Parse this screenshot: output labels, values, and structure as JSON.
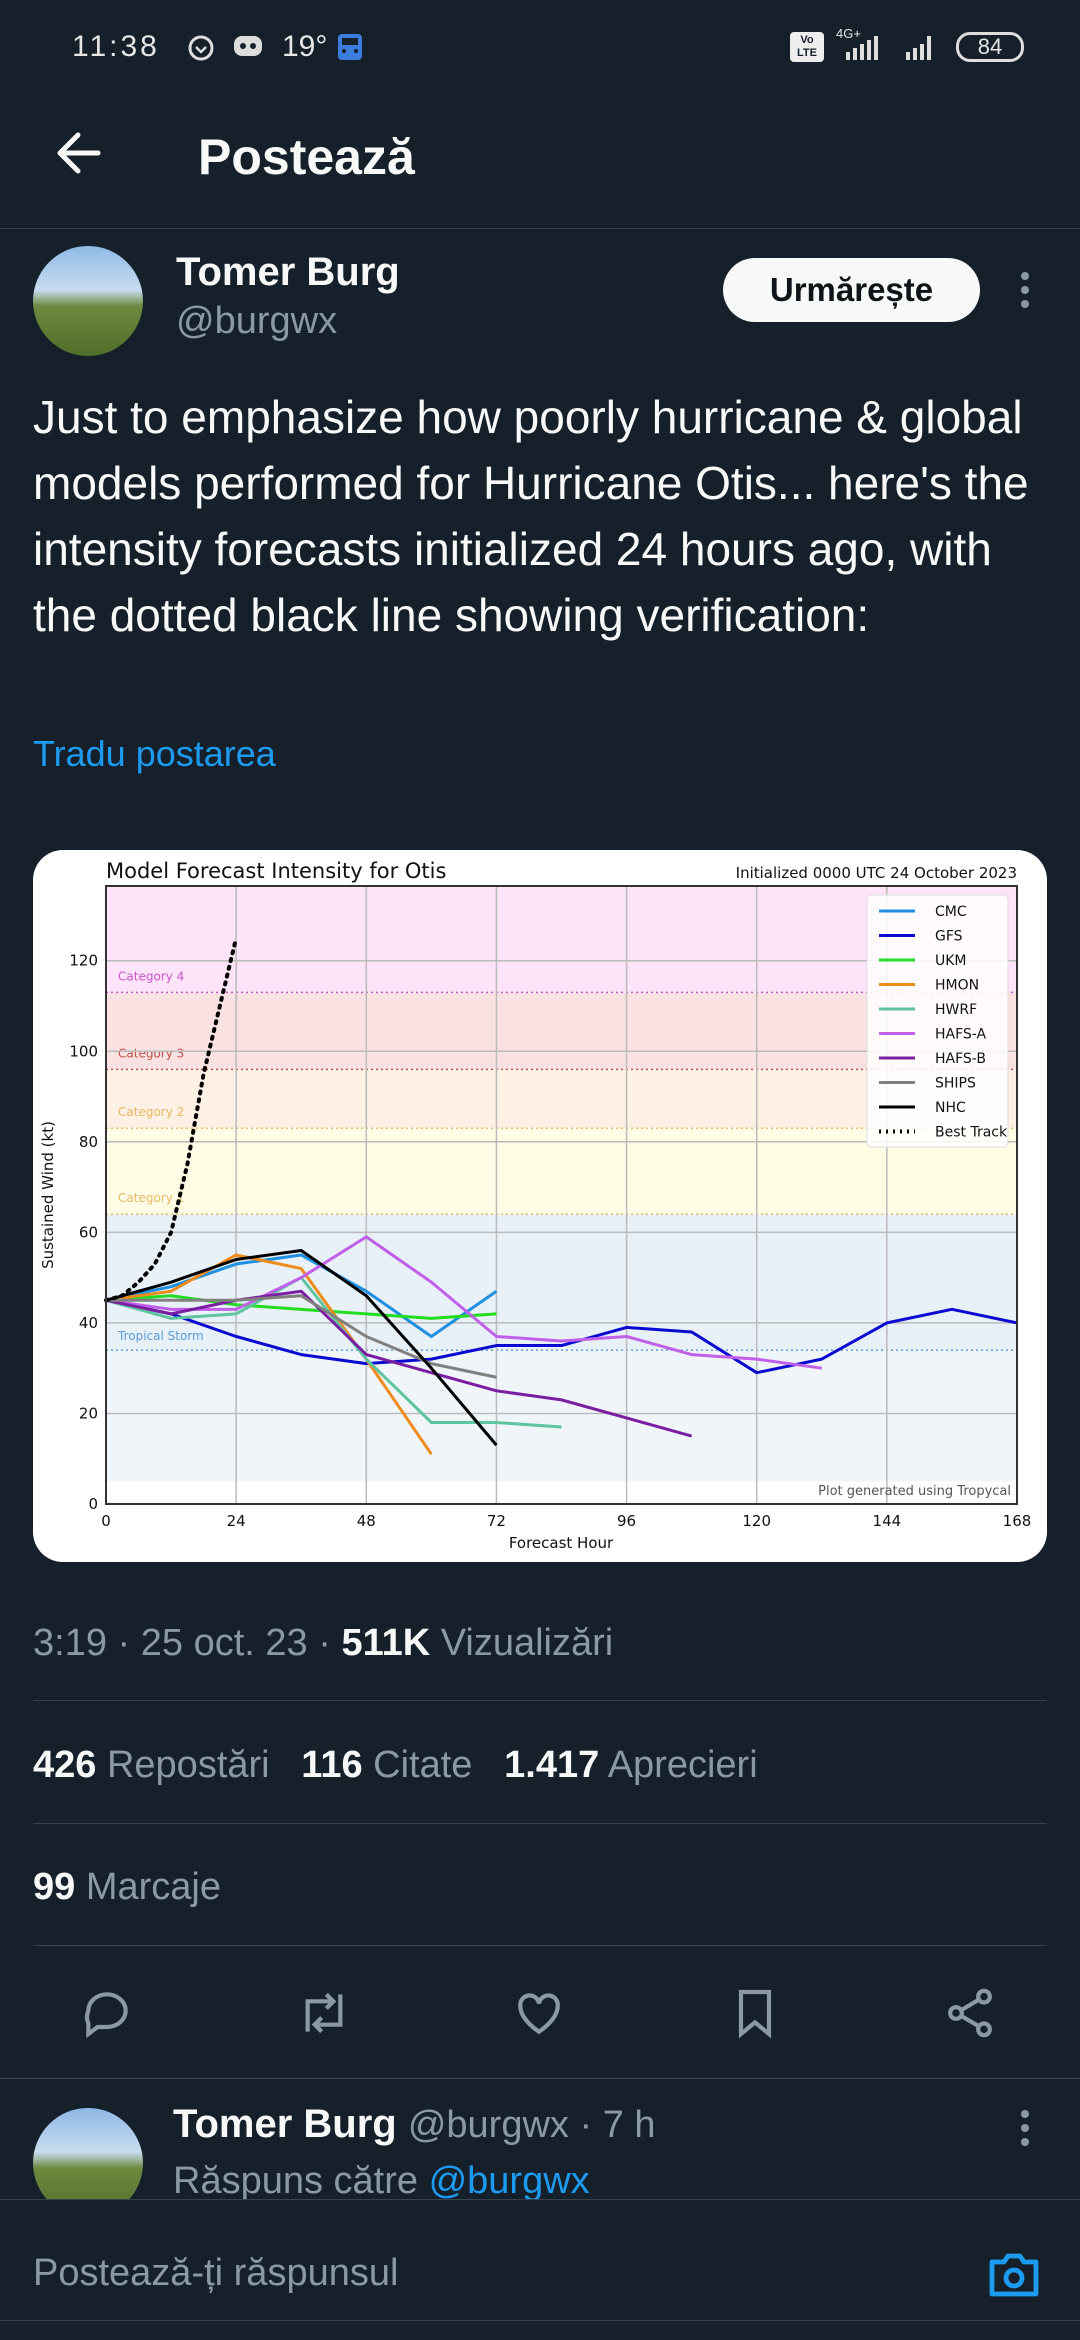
{
  "status_bar": {
    "time": "11:38",
    "temperature": "19°",
    "lte": "Vo LTE",
    "network": "4G+",
    "battery": "84"
  },
  "header": {
    "title": "Postează"
  },
  "post": {
    "author_name": "Tomer Burg",
    "author_handle": "@burgwx",
    "follow_label": "Urmărește",
    "text": "Just to emphasize how poorly hurricane & global models performed for Hurricane Otis... here's the intensity forecasts initialized 24 hours ago, with the dotted black line showing verification:",
    "translate_label": "Tradu postarea",
    "time": "3:19",
    "date": "25 oct. 23",
    "views_count": "511K",
    "views_label": "Vizualizări",
    "reposts_count": "426",
    "reposts_label": "Repostări",
    "quotes_count": "116",
    "quotes_label": "Citate",
    "likes_count": "1.417",
    "likes_label": "Aprecieri",
    "bookmarks_count": "99",
    "bookmarks_label": "Marcaje"
  },
  "reply": {
    "author_name": "Tomer Burg",
    "author_handle": "@burgwx",
    "age": "7 h",
    "replying_to_label": "Răspuns către",
    "replying_to_handle": "@burgwx"
  },
  "composer": {
    "placeholder": "Postează-ți răspunsul"
  },
  "chart_data": {
    "type": "line",
    "title": "Model Forecast Intensity for Otis",
    "subtitle": "Initialized 0000 UTC 24 October 2023",
    "xlabel": "Forecast Hour",
    "ylabel": "Sustained Wind (kt)",
    "xlim": [
      0,
      168
    ],
    "ylim": [
      0,
      136.5
    ],
    "xticks": [
      0,
      24,
      48,
      72,
      96,
      120,
      144,
      168
    ],
    "yticks": [
      0,
      20,
      40,
      60,
      80,
      100,
      120
    ],
    "grid": true,
    "legend_position": "top-right",
    "footnote": "Plot generated using Tropycal",
    "categories": [
      {
        "name": "Tropical Storm",
        "threshold": 34,
        "color": "#5b9bd5"
      },
      {
        "name": "Category 1",
        "threshold": 64,
        "color": "#e8b860"
      },
      {
        "name": "Category 2",
        "threshold": 83,
        "color": "#e8b860"
      },
      {
        "name": "Category 3",
        "threshold": 96,
        "color": "#c0504d"
      },
      {
        "name": "Category 4",
        "threshold": 113,
        "color": "#cc55cc"
      }
    ],
    "series": [
      {
        "name": "CMC",
        "color": "#1f8fe0",
        "x": [
          0,
          12,
          24,
          36,
          48,
          60,
          72
        ],
        "y": [
          45,
          48,
          53,
          55,
          47,
          37,
          47
        ]
      },
      {
        "name": "GFS",
        "color": "#0a0ad0",
        "x": [
          0,
          12,
          24,
          36,
          48,
          60,
          72,
          84,
          96,
          108,
          120,
          132,
          144,
          156,
          168
        ],
        "y": [
          45,
          42,
          37,
          33,
          31,
          32,
          35,
          35,
          39,
          38,
          29,
          32,
          40,
          43,
          40
        ]
      },
      {
        "name": "UKM",
        "color": "#22dd22",
        "x": [
          0,
          12,
          24,
          36,
          48,
          60,
          72
        ],
        "y": [
          45,
          46,
          44,
          43,
          42,
          41,
          42
        ]
      },
      {
        "name": "HMON",
        "color": "#f08c1c",
        "x": [
          0,
          12,
          24,
          36,
          48,
          60
        ],
        "y": [
          45,
          47,
          55,
          52,
          32,
          11
        ]
      },
      {
        "name": "HWRF",
        "color": "#5fc4a0",
        "x": [
          0,
          12,
          24,
          36,
          48,
          60,
          72,
          84
        ],
        "y": [
          45,
          41,
          42,
          50,
          32,
          18,
          18,
          17
        ]
      },
      {
        "name": "HAFS-A",
        "color": "#c060e8",
        "x": [
          0,
          12,
          24,
          36,
          48,
          60,
          72,
          84,
          96,
          108,
          120,
          132
        ],
        "y": [
          45,
          43,
          43,
          50,
          59,
          49,
          37,
          36,
          37,
          33,
          32,
          30
        ]
      },
      {
        "name": "HAFS-B",
        "color": "#7b1fa2",
        "x": [
          0,
          12,
          24,
          36,
          48,
          60,
          72,
          84,
          96,
          108
        ],
        "y": [
          45,
          42,
          45,
          47,
          33,
          29,
          25,
          23,
          19,
          15
        ]
      },
      {
        "name": "SHIPS",
        "color": "#808080",
        "x": [
          0,
          12,
          24,
          36,
          48,
          60,
          72
        ],
        "y": [
          45,
          45,
          45,
          46,
          37,
          31,
          28
        ]
      },
      {
        "name": "NHC",
        "color": "#000000",
        "x": [
          0,
          12,
          24,
          36,
          48,
          60,
          72
        ],
        "y": [
          45,
          49,
          54,
          56,
          46,
          30,
          13
        ]
      },
      {
        "name": "Best Track",
        "color": "#000000",
        "dotted": true,
        "x": [
          0,
          3,
          6,
          9,
          12,
          15,
          18,
          21,
          24
        ],
        "y": [
          45,
          46,
          49,
          53,
          60,
          75,
          95,
          110,
          125
        ]
      }
    ]
  }
}
